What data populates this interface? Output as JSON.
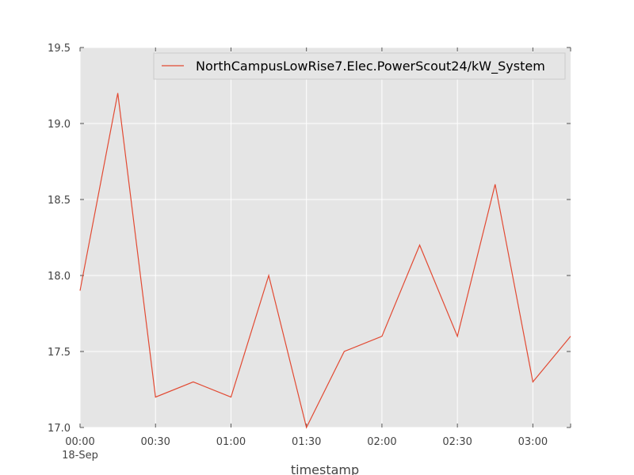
{
  "chart_data": {
    "type": "line",
    "xlabel": "timestamp",
    "ylabel": "",
    "x_ticks": [
      "00:00",
      "00:30",
      "01:00",
      "01:30",
      "02:00",
      "02:30",
      "03:00"
    ],
    "x_date_label": "18-Sep",
    "x": [
      "00:00",
      "00:15",
      "00:30",
      "00:45",
      "01:00",
      "01:15",
      "01:30",
      "01:45",
      "02:00",
      "02:15",
      "02:30",
      "02:45",
      "03:00",
      "03:15"
    ],
    "y_ticks": [
      "17.0",
      "17.5",
      "18.0",
      "18.5",
      "19.0",
      "19.5"
    ],
    "ylim": [
      17.0,
      19.5
    ],
    "xlim": [
      "00:00",
      "03:15"
    ],
    "grid": true,
    "legend_position": "top-right",
    "series": [
      {
        "name": "NorthCampusLowRise7.Elec.PowerScout24/kW_System",
        "color": "#e24a33",
        "values": [
          17.9,
          19.2,
          17.2,
          17.3,
          17.2,
          18.0,
          17.0,
          17.5,
          17.6,
          18.2,
          17.6,
          18.6,
          17.3,
          17.6
        ]
      }
    ]
  }
}
